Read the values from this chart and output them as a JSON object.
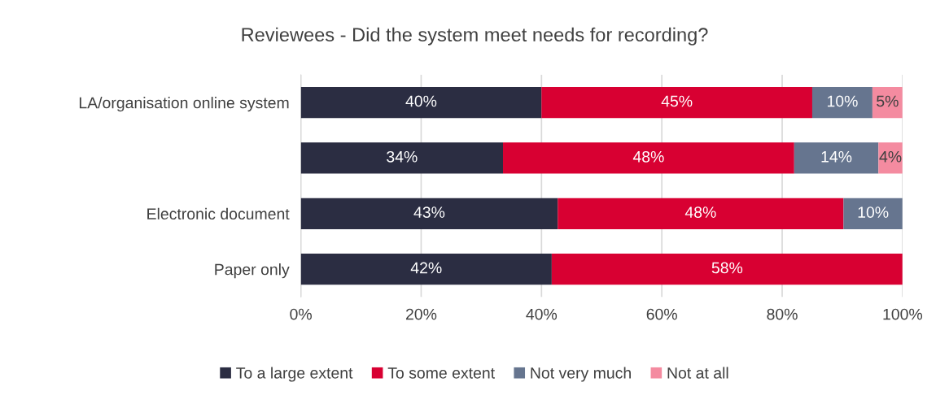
{
  "chart_data": {
    "type": "bar",
    "orientation": "horizontal",
    "stacked": true,
    "title": "Reviewees - Did the system meet needs for recording?",
    "categories": [
      "LA/organisation online system",
      null,
      "Electronic document",
      "Paper only"
    ],
    "series": [
      {
        "name": "To a large extent",
        "color": "#2b2d42",
        "values": [
          40,
          33.6,
          42.7,
          41.7
        ],
        "value_labels": [
          "40%",
          "34%",
          "43%",
          "42%"
        ]
      },
      {
        "name": "To some extent",
        "color": "#d80032",
        "values": [
          45,
          48.4,
          47.5,
          58.3
        ],
        "value_labels": [
          "45%",
          "48%",
          "48%",
          "58%"
        ]
      },
      {
        "name": "Not very much",
        "color": "#66758f",
        "values": [
          10,
          14,
          9.8,
          null
        ],
        "value_labels": [
          "10%",
          "14%",
          "10%",
          null
        ]
      },
      {
        "name": "Not at all",
        "color": "#f48ba0",
        "values": [
          5,
          4,
          null,
          null
        ],
        "value_labels": [
          "5%",
          "4%",
          null,
          null
        ]
      }
    ],
    "xlim": [
      0,
      100
    ],
    "xticks": [
      {
        "value": 0,
        "label": "0%"
      },
      {
        "value": 20,
        "label": "20%"
      },
      {
        "value": 40,
        "label": "40%"
      },
      {
        "value": 60,
        "label": "60%"
      },
      {
        "value": 80,
        "label": "80%"
      },
      {
        "value": 100,
        "label": "100%"
      }
    ],
    "grid": "x",
    "legend": "bottom"
  }
}
